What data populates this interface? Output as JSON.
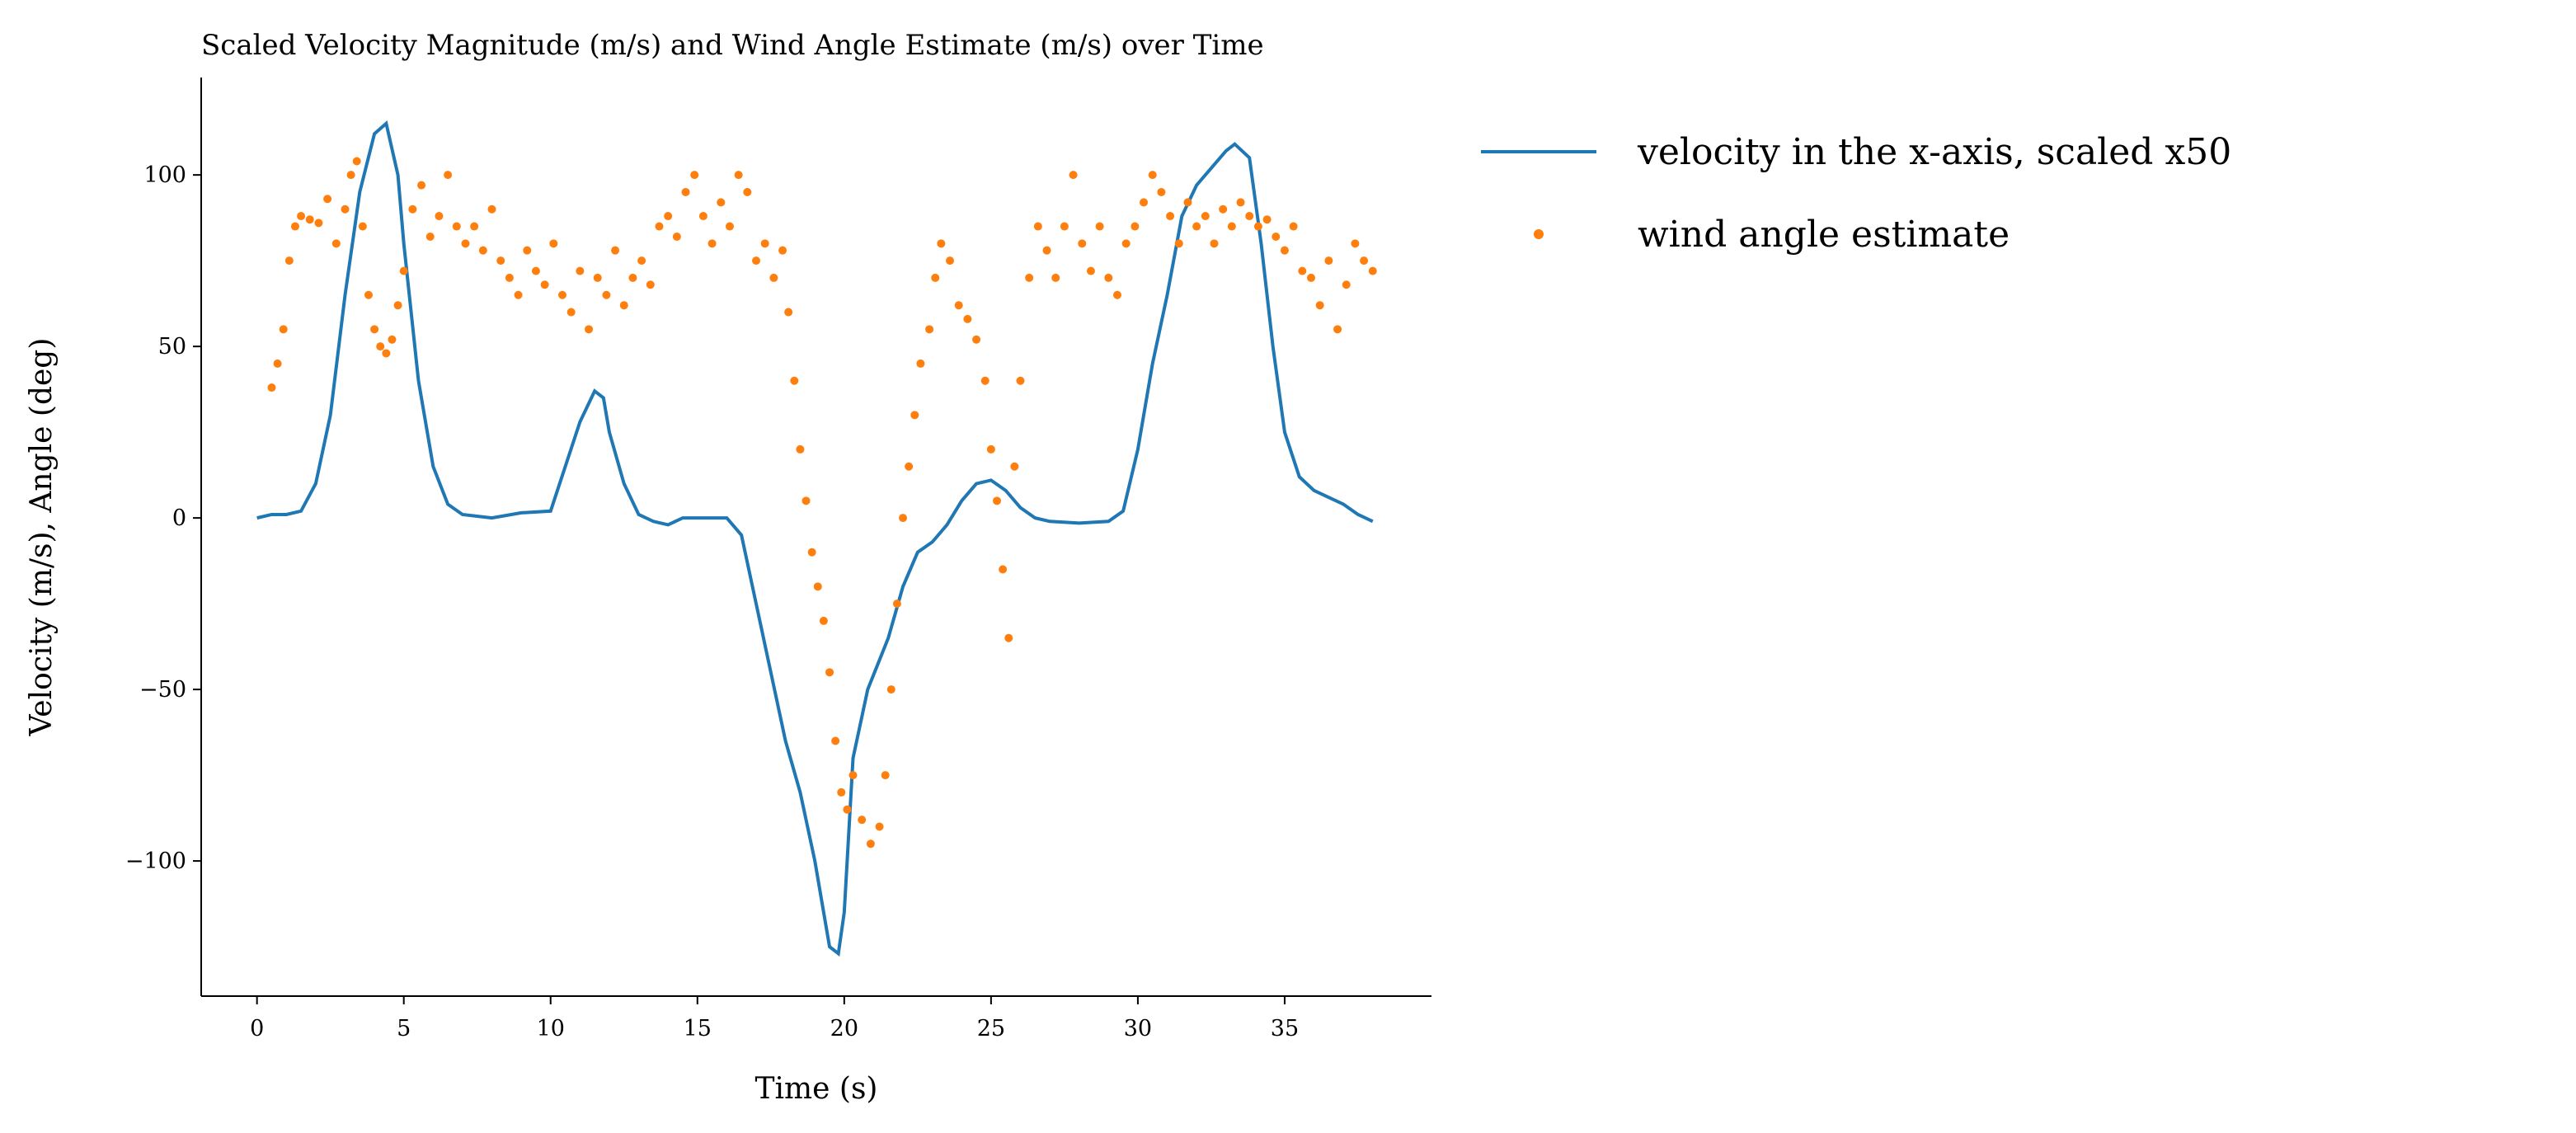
{
  "chart_data": {
    "type": "line-scatter",
    "title": "Scaled Velocity Magnitude (m/s) and Wind Angle Estimate (m/s) over Time",
    "x_label": "Time (s)",
    "y_label": "Velocity (m/s), Angle (deg)",
    "xlim": [
      -1.9,
      40.0
    ],
    "ylim": [
      -139.4,
      128.4
    ],
    "xticks": [
      0,
      5,
      10,
      15,
      20,
      25,
      30,
      35
    ],
    "yticks": [
      {
        "value": -100,
        "label": "−100"
      },
      {
        "value": -50,
        "label": "−50"
      },
      0,
      50,
      100
    ],
    "legend": "outside-upper-right",
    "series": [
      {
        "name": "velocity in the x-axis, scaled x50",
        "type": "line",
        "color": "#1f77b4",
        "x": [
          0,
          0.5,
          1,
          1.5,
          2,
          2.5,
          3,
          3.5,
          4,
          4.4,
          4.8,
          5,
          5.5,
          6,
          6.5,
          7,
          8,
          9,
          10,
          10.5,
          11,
          11.5,
          11.8,
          12,
          12.5,
          13,
          13.5,
          14,
          14.5,
          15,
          16,
          16.5,
          17,
          17.5,
          18,
          18.5,
          19,
          19.5,
          19.8,
          20,
          20.3,
          20.8,
          21.5,
          22,
          22.5,
          23,
          23.5,
          24,
          24.5,
          25,
          25.5,
          26,
          26.5,
          27,
          28,
          29,
          29.5,
          30,
          30.5,
          31,
          31.5,
          32,
          33,
          33.3,
          33.8,
          34.2,
          34.6,
          35,
          35.5,
          36,
          36.5,
          37,
          37.5,
          38
        ],
        "values": [
          0,
          1,
          1,
          2,
          10,
          30,
          65,
          95,
          112,
          115,
          100,
          80,
          40,
          15,
          4,
          1,
          0,
          1.5,
          2,
          15,
          28,
          37,
          35,
          25,
          10,
          1,
          -1,
          -2,
          0,
          0,
          0,
          -5,
          -25,
          -45,
          -65,
          -80,
          -100,
          -125,
          -127,
          -115,
          -70,
          -50,
          -35,
          -20,
          -10,
          -7,
          -2,
          5,
          10,
          11,
          8,
          3,
          0,
          -1,
          -1.5,
          -1,
          2,
          20,
          45,
          65,
          88,
          97,
          107,
          109,
          105,
          80,
          50,
          25,
          12,
          8,
          6,
          4,
          1,
          -1
        ]
      },
      {
        "name": "wind angle estimate",
        "type": "scatter",
        "color": "#ff7f0e",
        "x": [
          0.5,
          0.7,
          0.9,
          1.1,
          1.3,
          1.5,
          1.8,
          2.1,
          2.4,
          2.7,
          3,
          3.2,
          3.4,
          3.6,
          3.8,
          4,
          4.2,
          4.4,
          4.6,
          4.8,
          5,
          5.3,
          5.6,
          5.9,
          6.2,
          6.5,
          6.8,
          7.1,
          7.4,
          7.7,
          8,
          8.3,
          8.6,
          8.9,
          9.2,
          9.5,
          9.8,
          10.1,
          10.4,
          10.7,
          11,
          11.3,
          11.6,
          11.9,
          12.2,
          12.5,
          12.8,
          13.1,
          13.4,
          13.7,
          14,
          14.3,
          14.6,
          14.9,
          15.2,
          15.5,
          15.8,
          16.1,
          16.4,
          16.7,
          17,
          17.3,
          17.6,
          17.9,
          18.1,
          18.3,
          18.5,
          18.7,
          18.9,
          19.1,
          19.3,
          19.5,
          19.7,
          19.9,
          20.1,
          20.3,
          20.6,
          20.9,
          21.2,
          21.4,
          21.6,
          21.8,
          22,
          22.2,
          22.4,
          22.6,
          22.9,
          23.1,
          23.3,
          23.6,
          23.9,
          24.2,
          24.5,
          24.8,
          25,
          25.2,
          25.4,
          25.6,
          25.8,
          26,
          26.3,
          26.6,
          26.9,
          27.2,
          27.5,
          27.8,
          28.1,
          28.4,
          28.7,
          29,
          29.3,
          29.6,
          29.9,
          30.2,
          30.5,
          30.8,
          31.1,
          31.4,
          31.7,
          32,
          32.3,
          32.6,
          32.9,
          33.2,
          33.5,
          33.8,
          34.1,
          34.4,
          34.7,
          35,
          35.3,
          35.6,
          35.9,
          36.2,
          36.5,
          36.8,
          37.1,
          37.4,
          37.7,
          38
        ],
        "values": [
          38,
          45,
          55,
          75,
          85,
          88,
          87,
          86,
          93,
          80,
          90,
          100,
          104,
          85,
          65,
          55,
          50,
          48,
          52,
          62,
          72,
          90,
          97,
          82,
          88,
          100,
          85,
          80,
          85,
          78,
          90,
          75,
          70,
          65,
          78,
          72,
          68,
          80,
          65,
          60,
          72,
          55,
          70,
          65,
          78,
          62,
          70,
          75,
          68,
          85,
          88,
          82,
          95,
          100,
          88,
          80,
          92,
          85,
          100,
          95,
          75,
          80,
          70,
          78,
          60,
          40,
          20,
          5,
          -10,
          -20,
          -30,
          -45,
          -65,
          -80,
          -85,
          -75,
          -88,
          -95,
          -90,
          -75,
          -50,
          -25,
          0,
          15,
          30,
          45,
          55,
          70,
          80,
          75,
          62,
          58,
          52,
          40,
          20,
          5,
          -15,
          -35,
          15,
          40,
          70,
          85,
          78,
          70,
          85,
          100,
          80,
          72,
          85,
          70,
          65,
          80,
          85,
          92,
          100,
          95,
          88,
          80,
          92,
          85,
          88,
          80,
          90,
          85,
          92,
          88,
          85,
          87,
          82,
          78,
          85,
          72,
          70,
          62,
          75,
          55,
          68,
          80,
          75,
          72
        ]
      }
    ]
  }
}
